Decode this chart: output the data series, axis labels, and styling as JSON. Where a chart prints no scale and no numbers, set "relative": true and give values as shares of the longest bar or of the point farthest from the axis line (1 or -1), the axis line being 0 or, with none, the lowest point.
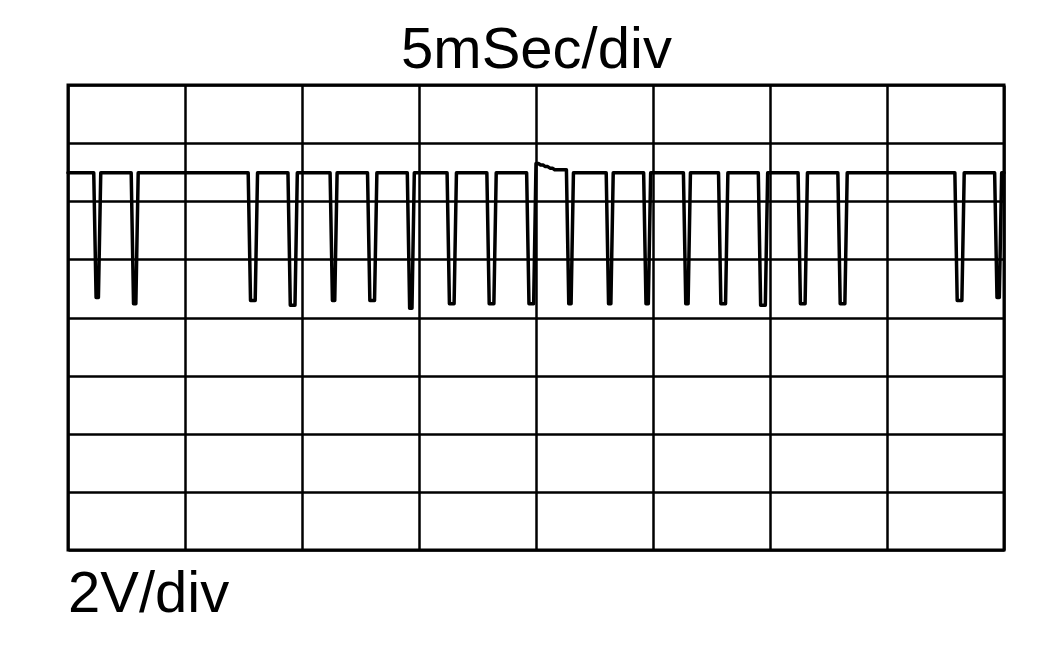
{
  "chart_data": {
    "type": "line",
    "xlabel": "5mSec/div",
    "annotations": [
      "2V/div"
    ],
    "relative": true,
    "categories": [
      null,
      null,
      null,
      null,
      null,
      null,
      null,
      null,
      null,
      null,
      null,
      null,
      null,
      null,
      null,
      null,
      null,
      null,
      null,
      null,
      null,
      null,
      null,
      null,
      null,
      null,
      null,
      null,
      null,
      null,
      null,
      null,
      null,
      null,
      null,
      null,
      null,
      null,
      null,
      null,
      null,
      null,
      null,
      null,
      null,
      null,
      null,
      null,
      null,
      null,
      null,
      null,
      null,
      null,
      null,
      null,
      null,
      null,
      null,
      null,
      null,
      null,
      null,
      null,
      null,
      null,
      null,
      null,
      null,
      null,
      null,
      null,
      null,
      null,
      null,
      null,
      null,
      null,
      null,
      null,
      null,
      null,
      null,
      null,
      null,
      null,
      null,
      null,
      null,
      null,
      null,
      null,
      null,
      null,
      null,
      null,
      null,
      null,
      null,
      null,
      null,
      null,
      null,
      null,
      null,
      null,
      null,
      null,
      null,
      null,
      null,
      null,
      null,
      null,
      null,
      null,
      null,
      null,
      null,
      null,
      null,
      null,
      null,
      null,
      null,
      null,
      null,
      null,
      null,
      null,
      null,
      null,
      null,
      null,
      null,
      null,
      null,
      null,
      null,
      null,
      null,
      null,
      null,
      null,
      null,
      null,
      null,
      null,
      null,
      null,
      null,
      null,
      null,
      null,
      null,
      null,
      null,
      null,
      null,
      null,
      null,
      null,
      null,
      null,
      null,
      null,
      null,
      null,
      null,
      null,
      null,
      null,
      null,
      null,
      null,
      null,
      null,
      null,
      null,
      null,
      null,
      null,
      null,
      null,
      null,
      null,
      null,
      null,
      null,
      null,
      null,
      null,
      null,
      null,
      null,
      null,
      null,
      null,
      null,
      null,
      null,
      null,
      null,
      null,
      null,
      null,
      null,
      null,
      null,
      null,
      null,
      null,
      null,
      null,
      null,
      null,
      null,
      null,
      null,
      null,
      null,
      null,
      null,
      null,
      null,
      null,
      null,
      null,
      null,
      null,
      null,
      null,
      null,
      null,
      null,
      null,
      null,
      null,
      null,
      null,
      null,
      null,
      null,
      null,
      null,
      null,
      null,
      null,
      null,
      null,
      null,
      null,
      null,
      null,
      null,
      null,
      null,
      null,
      null,
      null,
      null,
      null,
      null,
      null,
      null,
      null,
      null,
      null,
      null,
      null,
      null,
      null,
      null,
      null,
      null,
      null,
      null,
      null,
      null,
      null,
      null,
      null,
      null,
      null,
      null,
      null,
      null,
      null,
      null,
      null,
      null,
      null,
      null,
      null,
      null,
      null,
      null,
      null,
      null,
      null,
      null,
      null,
      null,
      null,
      null,
      null,
      null,
      null,
      null,
      null,
      null,
      null,
      null,
      null,
      null,
      null,
      null,
      null,
      null,
      null,
      null,
      null,
      null,
      null,
      null,
      null,
      null,
      null,
      null,
      null,
      null,
      null,
      null,
      null,
      null,
      null,
      null,
      null,
      null,
      null,
      null,
      null,
      null,
      null,
      null,
      null,
      null,
      null,
      null,
      null,
      null,
      null,
      null,
      null,
      null,
      null,
      null,
      null,
      null,
      null,
      null,
      null,
      null,
      null,
      null,
      null,
      null,
      null,
      null,
      null,
      null,
      null,
      null,
      null,
      null,
      null,
      null,
      null,
      null,
      null,
      null,
      null,
      null,
      null,
      null,
      null,
      null,
      null,
      null,
      null,
      null,
      null,
      null,
      null,
      null,
      null,
      null,
      null,
      null,
      null,
      null
    ],
    "series": [
      {
        "color": "#000000",
        "values": [
          0.94,
          0.94,
          0.94,
          0.94,
          0.94,
          0.94,
          0.94,
          0.94,
          0.94,
          0.94,
          0.94,
          0.94,
          0.13,
          0.13,
          0.94,
          0.94,
          0.94,
          0.94,
          0.94,
          0.94,
          0.94,
          0.94,
          0.94,
          0.94,
          0.94,
          0.94,
          0.94,
          0.94,
          0.09,
          0.09,
          0.94,
          0.94,
          0.94,
          0.94,
          0.94,
          0.94,
          0.94,
          0.94,
          0.94,
          0.94,
          0.94,
          0.94,
          0.94,
          0.94,
          0.94,
          0.94,
          0.94,
          0.94,
          0.94,
          0.94,
          0.94,
          0.94,
          0.94,
          0.94,
          0.94,
          0.94,
          0.94,
          0.94,
          0.94,
          0.94,
          0.94,
          0.94,
          0.94,
          0.94,
          0.94,
          0.94,
          0.94,
          0.94,
          0.94,
          0.94,
          0.94,
          0.94,
          0.94,
          0.94,
          0.94,
          0.94,
          0.94,
          0.94,
          0.11,
          0.11,
          0.11,
          0.94,
          0.94,
          0.94,
          0.94,
          0.94,
          0.94,
          0.94,
          0.94,
          0.94,
          0.94,
          0.94,
          0.94,
          0.94,
          0.94,
          0.08,
          0.08,
          0.08,
          0.94,
          0.94,
          0.94,
          0.94,
          0.94,
          0.94,
          0.94,
          0.94,
          0.94,
          0.94,
          0.94,
          0.94,
          0.94,
          0.94,
          0.94,
          0.11,
          0.11,
          0.94,
          0.94,
          0.94,
          0.94,
          0.94,
          0.94,
          0.94,
          0.94,
          0.94,
          0.94,
          0.94,
          0.94,
          0.94,
          0.94,
          0.11,
          0.11,
          0.11,
          0.94,
          0.94,
          0.94,
          0.94,
          0.94,
          0.94,
          0.94,
          0.94,
          0.94,
          0.94,
          0.94,
          0.94,
          0.94,
          0.94,
          0.06,
          0.06,
          0.94,
          0.94,
          0.94,
          0.94,
          0.94,
          0.94,
          0.94,
          0.94,
          0.94,
          0.94,
          0.94,
          0.94,
          0.94,
          0.94,
          0.94,
          0.09,
          0.09,
          0.09,
          0.94,
          0.94,
          0.94,
          0.94,
          0.94,
          0.94,
          0.94,
          0.94,
          0.94,
          0.94,
          0.94,
          0.94,
          0.94,
          0.94,
          0.09,
          0.09,
          0.09,
          0.94,
          0.94,
          0.94,
          0.94,
          0.94,
          0.94,
          0.94,
          0.94,
          0.94,
          0.94,
          0.94,
          0.94,
          0.94,
          0.94,
          0.09,
          0.09,
          0.09,
          1.0,
          1.0,
          0.99,
          0.99,
          0.98,
          0.98,
          0.97,
          0.97,
          0.96,
          0.96,
          0.96,
          0.96,
          0.96,
          0.96,
          0.09,
          0.09,
          0.94,
          0.94,
          0.94,
          0.94,
          0.94,
          0.94,
          0.94,
          0.94,
          0.94,
          0.94,
          0.94,
          0.94,
          0.94,
          0.94,
          0.94,
          0.09,
          0.09,
          0.94,
          0.94,
          0.94,
          0.94,
          0.94,
          0.94,
          0.94,
          0.94,
          0.94,
          0.94,
          0.94,
          0.94,
          0.94,
          0.94,
          0.09,
          0.09,
          0.94,
          0.94,
          0.94,
          0.94,
          0.94,
          0.94,
          0.94,
          0.94,
          0.94,
          0.94,
          0.94,
          0.94,
          0.94,
          0.94,
          0.94,
          0.09,
          0.09,
          0.94,
          0.94,
          0.94,
          0.94,
          0.94,
          0.94,
          0.94,
          0.94,
          0.94,
          0.94,
          0.94,
          0.94,
          0.94,
          0.09,
          0.09,
          0.09,
          0.94,
          0.94,
          0.94,
          0.94,
          0.94,
          0.94,
          0.94,
          0.94,
          0.94,
          0.94,
          0.94,
          0.94,
          0.94,
          0.94,
          0.08,
          0.08,
          0.08,
          0.94,
          0.94,
          0.94,
          0.94,
          0.94,
          0.94,
          0.94,
          0.94,
          0.94,
          0.94,
          0.94,
          0.94,
          0.94,
          0.94,
          0.09,
          0.09,
          0.09,
          0.94,
          0.94,
          0.94,
          0.94,
          0.94,
          0.94,
          0.94,
          0.94,
          0.94,
          0.94,
          0.94,
          0.94,
          0.94,
          0.94,
          0.09,
          0.09,
          0.09,
          0.94,
          0.94,
          0.94,
          0.94,
          0.94,
          0.94,
          0.94,
          0.94,
          0.94,
          0.94,
          0.94,
          0.94,
          0.94,
          0.94,
          0.94,
          0.94,
          0.94,
          0.94,
          0.94,
          0.94,
          0.94,
          0.94,
          0.94,
          0.94,
          0.94,
          0.94,
          0.94,
          0.94,
          0.94,
          0.94,
          0.94,
          0.94,
          0.94,
          0.94,
          0.94,
          0.94,
          0.94,
          0.94,
          0.94,
          0.94,
          0.94,
          0.94,
          0.94,
          0.94,
          0.94,
          0.94,
          0.94,
          0.11,
          0.11,
          0.11,
          0.94,
          0.94,
          0.94,
          0.94,
          0.94,
          0.94,
          0.94,
          0.94,
          0.94,
          0.94,
          0.94,
          0.94,
          0.94,
          0.94,
          0.13,
          0.13,
          0.94,
          0.94
        ]
      }
    ],
    "grid": true,
    "tick_labels": false,
    "line_style": "solid"
  }
}
